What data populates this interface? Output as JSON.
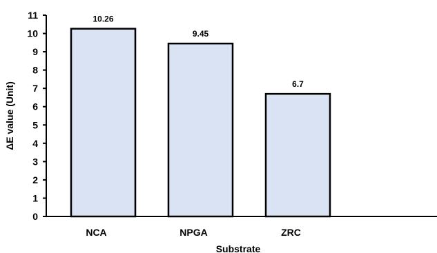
{
  "chart_data": {
    "type": "bar",
    "title": "",
    "xlabel": "Substrate",
    "ylabel": "ΔE value (Unit)",
    "categories": [
      "NCA",
      "NPGA",
      "ZRC"
    ],
    "values": [
      10.26,
      9.45,
      6.7
    ],
    "data_labels": [
      "10.26",
      "9.45",
      "6.7"
    ],
    "ylim": [
      0,
      11
    ],
    "yticks": [
      "0",
      "1",
      "2",
      "3",
      "4",
      "5",
      "6",
      "7",
      "8",
      "9",
      "10",
      "11"
    ],
    "grid": false,
    "legend": "none",
    "colors": {
      "bar_fill": "#dae3f3",
      "bar_stroke": "#000000",
      "axis": "#000000"
    }
  }
}
